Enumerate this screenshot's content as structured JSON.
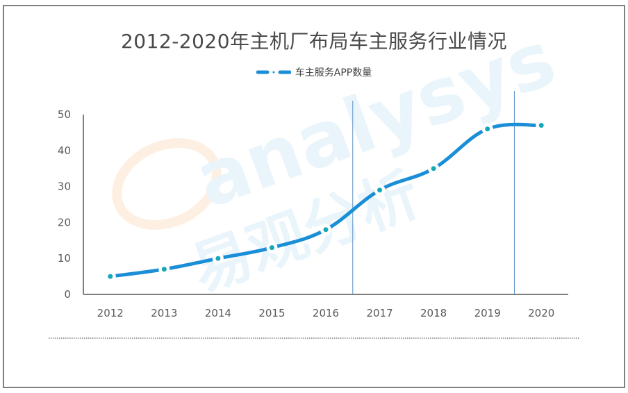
{
  "title": "2012-2020年主机厂布局车主服务行业情况",
  "legend": [
    {
      "label": "车主服务APP数量",
      "color": "#1a8ed6",
      "marker_color": "#17a8b8"
    }
  ],
  "watermark": {
    "latin": "analysys",
    "chinese": "易观分析"
  },
  "chart_data": {
    "type": "line",
    "title": "2012-2020年主机厂布局车主服务行业情况",
    "categories": [
      "2012",
      "2013",
      "2014",
      "2015",
      "2016",
      "2017",
      "2018",
      "2019",
      "2020"
    ],
    "series": [
      {
        "name": "车主服务APP数量",
        "values": [
          5,
          7,
          10,
          13,
          18,
          29,
          35,
          46,
          47
        ],
        "color": "#1a8ed6",
        "line_style": "dash-dot",
        "smooth": true
      }
    ],
    "xlabel": "",
    "ylabel": "",
    "ylim": [
      0,
      50
    ],
    "yticks": [
      0,
      10,
      20,
      30,
      40,
      50
    ],
    "grid": false,
    "legend_position": "top",
    "vertical_markers": [
      {
        "between": [
          "2016",
          "2017"
        ]
      },
      {
        "between": [
          "2019",
          "2020"
        ]
      }
    ]
  }
}
